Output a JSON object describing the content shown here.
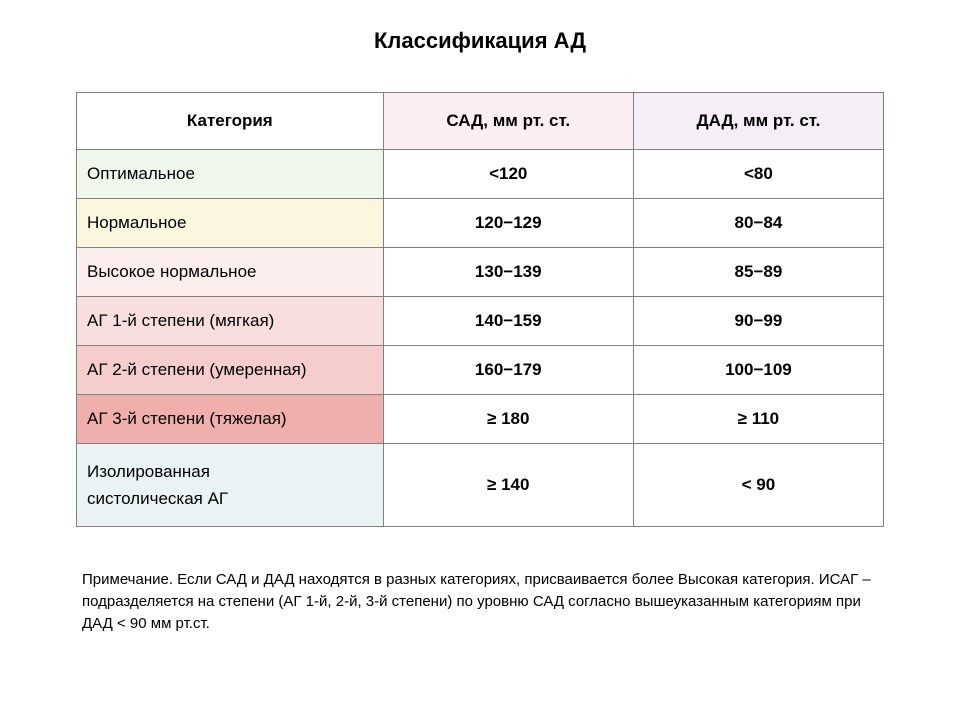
{
  "title": "Классификация АД",
  "table": {
    "type": "table",
    "header_bg": {
      "category": "#ffffff",
      "sbp": "#fbeef2",
      "dbp": "#f6eef6"
    },
    "columns": [
      "Категория",
      "САД, мм рт. ст.",
      "ДАД, мм рт. ст."
    ],
    "col_widths_pct": [
      38,
      31,
      31
    ],
    "border_color": "#808080",
    "header_fontsize": 17,
    "cell_fontsize": 17,
    "rows": [
      {
        "category": "Оптимальное",
        "sbp": "<120",
        "dbp": "<80",
        "cat_bg": "#eef7ea"
      },
      {
        "category": "Нормальное",
        "sbp": "120−129",
        "dbp": "80−84",
        "cat_bg": "#fbf6de"
      },
      {
        "category": "Высокое нормальное",
        "sbp": "130−139",
        "dbp": "85−89",
        "cat_bg": "#fceeed"
      },
      {
        "category": "АГ 1-й степени (мягкая)",
        "sbp": "140−159",
        "dbp": "90−99",
        "cat_bg": "#f8dedd"
      },
      {
        "category": "АГ 2-й степени (умеренная)",
        "sbp": "160−179",
        "dbp": "100−109",
        "cat_bg": "#f4cdcc"
      },
      {
        "category": "АГ 3-й степени (тяжелая)",
        "sbp": "≥ 180",
        "dbp": "≥ 110",
        "cat_bg": "#efb0ad"
      },
      {
        "category": "Изолированная\nсистолическая АГ",
        "sbp": "≥ 140",
        "dbp": "< 90",
        "cat_bg": "#e9f3f4"
      }
    ]
  },
  "footnote": "Примечание. Если САД и ДАД находятся в разных категориях, присваивается более Высокая категория. ИСАГ – подразделяется на степени (АГ 1-й, 2-й, 3-й степени) по уровню САД согласно вышеуказанным категориям при ДАД < 90 мм рт.ст.",
  "colors": {
    "background": "#ffffff",
    "text": "#000000"
  }
}
